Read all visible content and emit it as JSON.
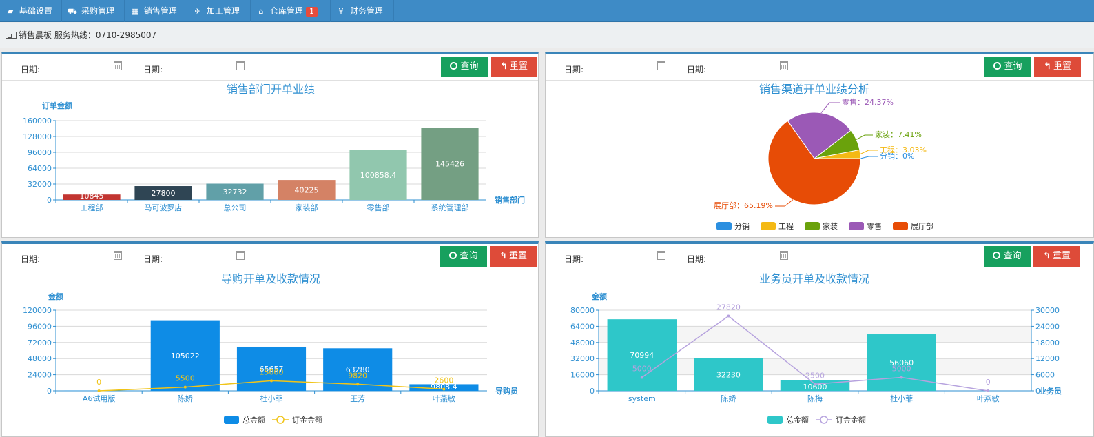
{
  "nav": [
    {
      "label": "基础设置",
      "icon": "folder-open-icon",
      "glyph": "▰"
    },
    {
      "label": "采购管理",
      "icon": "cart-icon",
      "glyph": "⛟"
    },
    {
      "label": "销售管理",
      "icon": "calculator-icon",
      "glyph": "▦"
    },
    {
      "label": "加工管理",
      "icon": "plane-icon",
      "glyph": "✈"
    },
    {
      "label": "仓库管理",
      "icon": "home-icon",
      "glyph": "⌂",
      "badge": "1"
    },
    {
      "label": "财务管理",
      "icon": "yen-icon",
      "glyph": "¥"
    }
  ],
  "subbar": {
    "text": "销售晨板 服务热线：0710-2985007",
    "icon": "dashboard-icon"
  },
  "filter": {
    "date_label": "日期:",
    "query_label": "查询",
    "reset_label": "重置",
    "query_icon": "search-icon",
    "reset_icon": "reply-icon",
    "calendar_icon": "calendar-icon"
  },
  "colors": {
    "nav": "#3e8bc6",
    "panel_top": "#3a85b9",
    "query_btn": "#17a05e",
    "reset_btn": "#de4b39",
    "title": "#2e8fd1"
  },
  "chart_data": [
    {
      "type": "bar",
      "title": "销售部门开单业绩",
      "ylabel": "订单金额",
      "xlabel": "销售部门",
      "ylim": [
        0,
        160000
      ],
      "yticks": [
        0,
        32000,
        64000,
        96000,
        128000,
        160000
      ],
      "categories": [
        "工程部",
        "马可波罗店",
        "总公司",
        "家装部",
        "零售部",
        "系统管理部"
      ],
      "values": [
        10845,
        27800,
        32732,
        40225,
        100858.4,
        145426
      ],
      "value_labels": [
        "10845",
        "27800",
        "32732",
        "40225",
        "100858.4",
        "145426"
      ],
      "colors": [
        "#c23531",
        "#2f4554",
        "#61a0a8",
        "#d48265",
        "#91c7ae",
        "#749f83"
      ]
    },
    {
      "type": "pie",
      "title": "销售渠道开单业绩分析",
      "slices": [
        {
          "name": "分销",
          "value": 0,
          "label": "分销：0%",
          "color": "#2b8fe0"
        },
        {
          "name": "工程",
          "value": 3.03,
          "label": "工程：3.03%",
          "color": "#f4b914"
        },
        {
          "name": "家装",
          "value": 7.41,
          "label": "家装：7.41%",
          "color": "#6aa20c"
        },
        {
          "name": "零售",
          "value": 24.37,
          "label": "零售：24.37%",
          "color": "#9b59b6"
        },
        {
          "name": "展厅部",
          "value": 65.19,
          "label": "展厅部：65.19%",
          "color": "#e74c06"
        }
      ],
      "legend_position": "bottom"
    },
    {
      "type": "bar",
      "title": "导购开单及收款情况",
      "ylabel": "金额",
      "xlabel": "导购员",
      "ylim": [
        0,
        120000
      ],
      "yticks": [
        0,
        24000,
        48000,
        72000,
        96000,
        120000
      ],
      "categories": [
        "A6试用版",
        "陈娇",
        "杜小菲",
        "王芳",
        "叶燕敏"
      ],
      "series": [
        {
          "name": "总金额",
          "kind": "bar",
          "color": "#0e8ce6",
          "values": [
            300,
            105022,
            65657,
            63280,
            9808.4
          ],
          "value_labels": [
            "300",
            "105022",
            "65657",
            "63280",
            "9808.4"
          ]
        },
        {
          "name": "订金金额",
          "kind": "line",
          "color": "#f0c419",
          "values": [
            0,
            5500,
            15000,
            9820,
            2600
          ],
          "value_labels": [
            "0",
            "5500",
            "15000",
            "9820",
            "2600"
          ]
        }
      ],
      "legend_position": "bottom"
    },
    {
      "type": "bar",
      "title": "业务员开单及收款情况",
      "ylabel": "金额",
      "xlabel": "业务员",
      "ylim": [
        0,
        80000
      ],
      "yticks": [
        0,
        16000,
        32000,
        48000,
        64000,
        80000
      ],
      "y2lim": [
        0,
        30000
      ],
      "y2ticks": [
        0,
        6000,
        12000,
        18000,
        24000,
        30000
      ],
      "categories": [
        "system",
        "陈娇",
        "陈梅",
        "杜小菲",
        "叶燕敏"
      ],
      "series": [
        {
          "name": "总金额",
          "kind": "bar",
          "color": "#2ec7c9",
          "values": [
            70994,
            32230,
            10600,
            56060,
            0
          ],
          "value_labels": [
            "70994",
            "32230",
            "10600",
            "56060",
            "0"
          ]
        },
        {
          "name": "订金金额",
          "kind": "line",
          "color": "#b6a2de",
          "values": [
            5000,
            27820,
            2500,
            5000,
            0
          ],
          "value_labels": [
            "5000",
            "27820",
            "2500",
            "5000",
            "0"
          ]
        }
      ],
      "legend_position": "bottom"
    }
  ]
}
